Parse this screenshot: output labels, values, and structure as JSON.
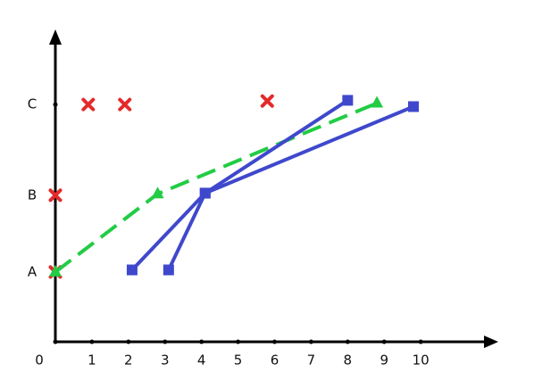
{
  "chart_data": {
    "type": "line",
    "xlim": [
      0,
      12
    ],
    "ylim": [
      0,
      4.45
    ],
    "xticks": [
      0,
      1,
      2,
      3,
      4,
      5,
      6,
      7,
      8,
      9,
      10
    ],
    "yticks": [
      {
        "value": 1,
        "label": "A"
      },
      {
        "value": 2.1,
        "label": "B"
      },
      {
        "value": 3.4,
        "label": "C"
      }
    ],
    "series": [
      {
        "color": "#e52a2a",
        "marker": "x",
        "line": false,
        "x": [
          0,
          0,
          0.9,
          1.9,
          5.8
        ],
        "values": [
          1,
          2.1,
          3.4,
          3.4,
          3.45
        ]
      },
      {
        "color": "#22cc44",
        "marker": "triangle",
        "line": true,
        "dashed": true,
        "x": [
          0,
          2.8,
          8.8
        ],
        "values": [
          1,
          2.12,
          3.42
        ]
      },
      {
        "color": "#3f48cc",
        "marker": "square",
        "line": true,
        "dashed": false,
        "x": [
          2.1,
          4.1,
          8.0
        ],
        "values": [
          1.03,
          2.13,
          3.46
        ]
      },
      {
        "color": "#3f48cc",
        "marker": "square",
        "line": true,
        "dashed": false,
        "x": [
          3.1,
          4.1,
          9.8
        ],
        "values": [
          1.03,
          2.13,
          3.37
        ]
      }
    ]
  }
}
